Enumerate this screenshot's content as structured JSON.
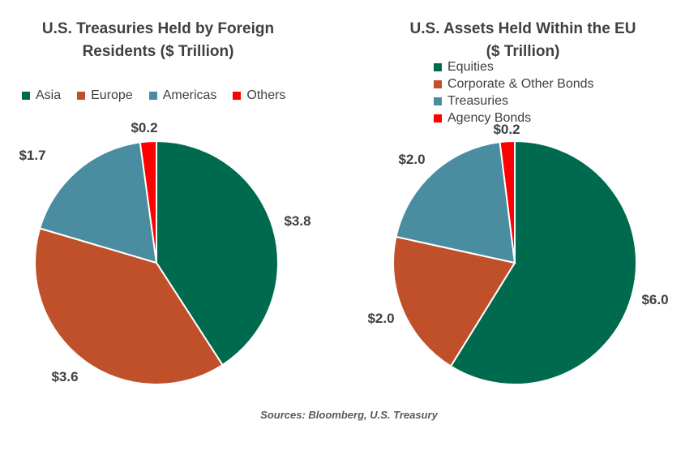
{
  "chart_data": [
    {
      "type": "pie",
      "title": [
        "U.S. Treasuries Held by Foreign",
        "Residents ($ Trillion)"
      ],
      "categories": [
        "Asia",
        "Europe",
        "Americas",
        "Others"
      ],
      "values": [
        3.8,
        3.6,
        1.7,
        0.2
      ],
      "data_labels": [
        "$3.8",
        "$3.6",
        "$1.7",
        "$0.2"
      ],
      "colors": [
        "#006A4E",
        "#C0502A",
        "#4A8DA0",
        "#FF0000"
      ],
      "legend": "top"
    },
    {
      "type": "pie",
      "title": [
        "U.S. Assets Held Within the EU",
        "($ Trillion)"
      ],
      "categories": [
        "Equities",
        "Corporate & Other Bonds",
        "Treasuries",
        "Agency Bonds"
      ],
      "values": [
        6.0,
        2.0,
        2.0,
        0.2
      ],
      "data_labels": [
        "$6.0",
        "$2.0",
        "$2.0",
        "$0.2"
      ],
      "colors": [
        "#006A4E",
        "#C0502A",
        "#4A8DA0",
        "#FF0000"
      ],
      "legend": "top-left"
    }
  ],
  "source": "Sources: Bloomberg, U.S. Treasury"
}
